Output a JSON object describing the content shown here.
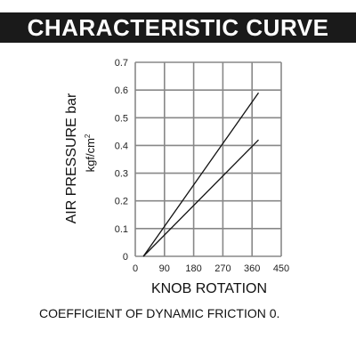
{
  "title": "CHARACTERISTIC CURVE",
  "caption": "COEFFICIENT OF DYNAMIC FRICTION 0.",
  "colors": {
    "title_bg": "#1a1a1a",
    "title_fg": "#ffffff",
    "grid": "#888888",
    "line": "#111111"
  },
  "chart_data": {
    "type": "line",
    "xlabel": "KNOB ROTATION",
    "ylabel": "AIR PRESSURE bar",
    "ylabel_units": [
      "kgf/cm",
      "2"
    ],
    "xlim": [
      0,
      450
    ],
    "ylim": [
      0,
      0.7
    ],
    "x_ticks": [
      0,
      90,
      180,
      270,
      360,
      450
    ],
    "y_ticks": [
      0,
      0.1,
      0.2,
      0.3,
      0.4,
      0.5,
      0.6,
      0.7
    ],
    "x_tick_labels": [
      "0",
      "90",
      "180",
      "270",
      "360",
      "450"
    ],
    "y_tick_labels": [
      "0",
      "0.1",
      "0.2",
      "0.3",
      "0.4",
      "0.5",
      "0.6",
      "0.7"
    ],
    "grid": true,
    "series": [
      {
        "x": [
          25,
          380
        ],
        "y": [
          0.0,
          0.59
        ]
      },
      {
        "x": [
          25,
          380
        ],
        "y": [
          0.0,
          0.42
        ]
      }
    ]
  }
}
